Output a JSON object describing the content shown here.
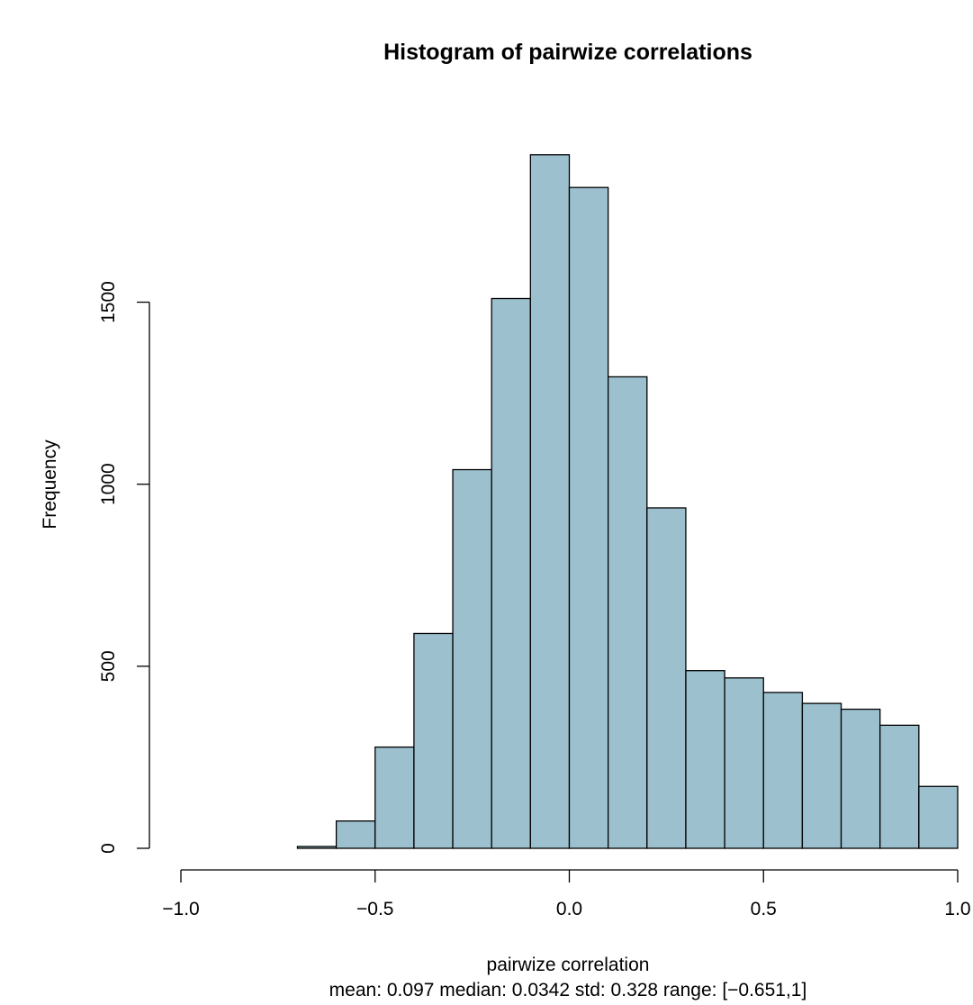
{
  "chart_data": {
    "type": "bar",
    "title": "Histogram of pairwize correlations",
    "xlabel": "pairwize correlation",
    "ylabel": "Frequency",
    "subtitle": "mean: 0.097 median: 0.0342 std: 0.328 range: [−0.651,1]",
    "xlim": [
      -1.0,
      1.0
    ],
    "ylim": [
      0,
      1950
    ],
    "xticks": [
      -1.0,
      -0.5,
      0.0,
      0.5,
      1.0
    ],
    "xtick_labels": [
      "−1.0",
      "−0.5",
      "0.0",
      "0.5",
      "1.0"
    ],
    "yticks": [
      0,
      500,
      1000,
      1500
    ],
    "ytick_labels": [
      "0",
      "500",
      "1000",
      "1500"
    ],
    "bin_edges": [
      -0.7,
      -0.6,
      -0.5,
      -0.4,
      -0.3,
      -0.2,
      -0.1,
      0.0,
      0.1,
      0.2,
      0.3,
      0.4,
      0.5,
      0.6,
      0.7,
      0.8,
      0.9,
      1.0
    ],
    "values": [
      5,
      75,
      278,
      590,
      1040,
      1510,
      1905,
      1815,
      1295,
      935,
      488,
      468,
      428,
      398,
      382,
      338,
      170
    ],
    "bar_color": "#9dc0ce",
    "grid": false,
    "legend": "none"
  }
}
